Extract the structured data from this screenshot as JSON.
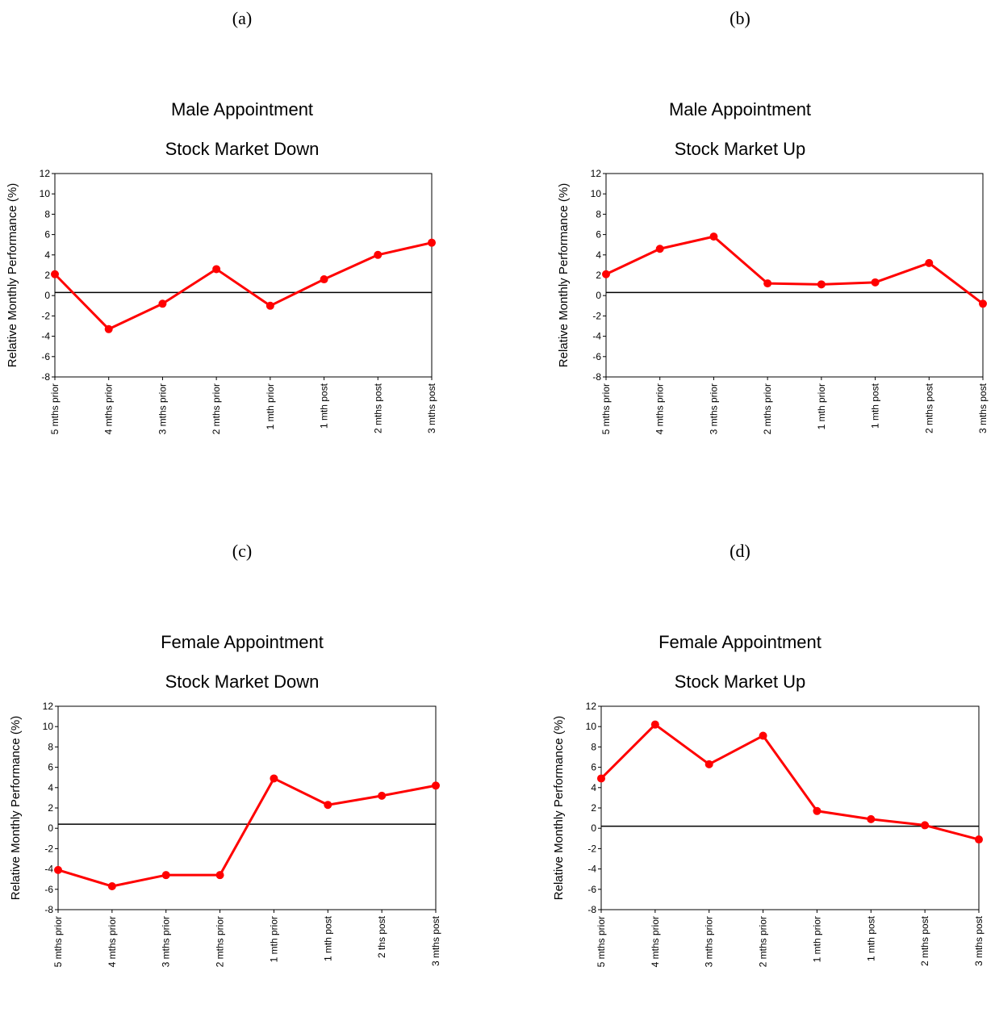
{
  "panels": [
    {
      "label": "(a)",
      "title_line1": "Male Appointment",
      "title_line2": "Stock Market Down"
    },
    {
      "label": "(b)",
      "title_line1": "Male Appointment",
      "title_line2": "Stock Market Up"
    },
    {
      "label": "(c)",
      "title_line1": "Female Appointment",
      "title_line2": "Stock Market Down"
    },
    {
      "label": "(d)",
      "title_line1": "Female Appointment",
      "title_line2": "Stock Market Up"
    }
  ],
  "chart_data": [
    {
      "type": "line",
      "title": "Male Appointment Stock Market Down",
      "ylabel": "Relative Monthly Performance (%)",
      "ylim": [
        -8,
        12
      ],
      "yticks": [
        "-8",
        "-6",
        "-4",
        "-2",
        "0",
        "2",
        "4",
        "6",
        "8",
        "10",
        "12"
      ],
      "categories": [
        "5 mths prior",
        "4 mths prior",
        "3 mths prior",
        "2 mths prior",
        "1 mth prior",
        "1 mth post",
        "2 mths post",
        "3 mths post"
      ],
      "values": [
        2.1,
        -3.3,
        -0.8,
        2.6,
        -1.0,
        1.6,
        4.0,
        5.2
      ],
      "reference_line": 0.3,
      "color": "#ff0000"
    },
    {
      "type": "line",
      "title": "Male Appointment Stock Market Up",
      "ylabel": "Relative Monthly Performance (%)",
      "ylim": [
        -8,
        12
      ],
      "yticks": [
        "-8",
        "-6",
        "-4",
        "-2",
        "0",
        "2",
        "4",
        "6",
        "8",
        "10",
        "12"
      ],
      "categories": [
        "5 mths prior",
        "4 mths prior",
        "3 mths prior",
        "2 mths prior",
        "1 mth prior",
        "1 mth post",
        "2 mths post",
        "3 mths post"
      ],
      "values": [
        2.1,
        4.6,
        5.8,
        1.2,
        1.1,
        1.3,
        3.2,
        -0.8
      ],
      "reference_line": 0.3,
      "color": "#ff0000"
    },
    {
      "type": "line",
      "title": "Female Appointment Stock Market Down",
      "ylabel": "Relative Monthly Performance (%)",
      "ylim": [
        -8,
        12
      ],
      "yticks": [
        "-8",
        "-6",
        "-4",
        "-2",
        "0",
        "2",
        "4",
        "6",
        "8",
        "10",
        "12"
      ],
      "categories": [
        "5 mths prior",
        "4 mths prior",
        "3 mths prior",
        "2 mths prior",
        "1 mth prior",
        "1 mth post",
        "2 ths post",
        "3 mths post"
      ],
      "values": [
        -4.1,
        -5.7,
        -4.6,
        -4.6,
        4.9,
        2.3,
        3.2,
        4.2
      ],
      "reference_line": 0.4,
      "color": "#ff0000"
    },
    {
      "type": "line",
      "title": "Female Appointment Stock Market Up",
      "ylabel": "Relative Monthly Performance (%)",
      "ylim": [
        -8,
        12
      ],
      "yticks": [
        "-8",
        "-6",
        "-4",
        "-2",
        "0",
        "2",
        "4",
        "6",
        "8",
        "10",
        "12"
      ],
      "categories": [
        "5 mths prior",
        "4 mths prior",
        "3 mths prior",
        "2 mths prior",
        "1 mth prior",
        "1 mth post",
        "2 mths post",
        "3 mths post"
      ],
      "values": [
        4.9,
        10.2,
        6.3,
        9.1,
        1.7,
        0.9,
        0.3,
        -1.1
      ],
      "reference_line": 0.2,
      "color": "#ff0000"
    }
  ]
}
